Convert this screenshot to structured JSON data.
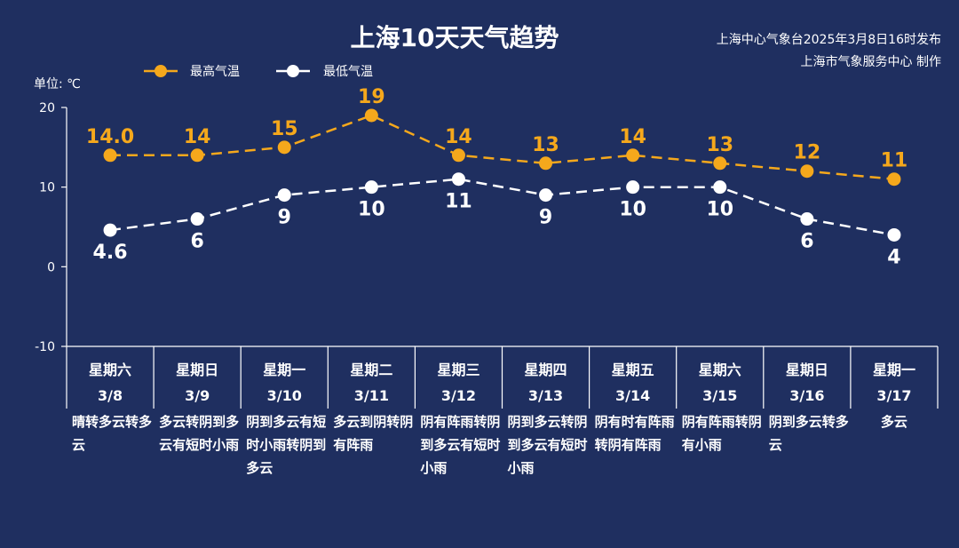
{
  "chart_data": {
    "type": "line",
    "title": "上海10天天气趋势",
    "publisher": "上海中心气象台2025年3月8日16时发布",
    "producer": "上海市气象服务中心 制作",
    "ylabel": "单位: ℃",
    "ylim": [
      -10,
      20
    ],
    "yticks": [
      20,
      10,
      0,
      -10
    ],
    "grid": false,
    "legend_position": "top-left",
    "colors": {
      "background": "#1f2f60",
      "high": "#f5a81c",
      "low": "#ffffff"
    },
    "x": [
      {
        "weekday": "星期六",
        "date": "3/8",
        "weather": "晴转多云转多云"
      },
      {
        "weekday": "星期日",
        "date": "3/9",
        "weather": "多云转阴到多云有短时小雨"
      },
      {
        "weekday": "星期一",
        "date": "3/10",
        "weather": "阴到多云有短时小雨转阴到多云"
      },
      {
        "weekday": "星期二",
        "date": "3/11",
        "weather": "多云到阴转阴有阵雨"
      },
      {
        "weekday": "星期三",
        "date": "3/12",
        "weather": "阴有阵雨转阴到多云有短时小雨"
      },
      {
        "weekday": "星期四",
        "date": "3/13",
        "weather": "阴到多云转阴到多云有短时小雨"
      },
      {
        "weekday": "星期五",
        "date": "3/14",
        "weather": "阴有时有阵雨转阴有阵雨"
      },
      {
        "weekday": "星期六",
        "date": "3/15",
        "weather": "阴有阵雨转阴有小雨"
      },
      {
        "weekday": "星期日",
        "date": "3/16",
        "weather": "阴到多云转多云"
      },
      {
        "weekday": "星期一",
        "date": "3/17",
        "weather": "多云"
      }
    ],
    "series": [
      {
        "name": "最高气温",
        "values": [
          14.0,
          14,
          15,
          19,
          14,
          13,
          14,
          13,
          12,
          11
        ],
        "labels": [
          "14.0",
          "14",
          "15",
          "19",
          "14",
          "13",
          "14",
          "13",
          "12",
          "11"
        ]
      },
      {
        "name": "最低气温",
        "values": [
          4.6,
          6,
          9,
          10,
          11,
          9,
          10,
          10,
          6,
          4
        ],
        "labels": [
          "4.6",
          "6",
          "9",
          "10",
          "11",
          "9",
          "10",
          "10",
          "6",
          "4"
        ]
      }
    ]
  }
}
